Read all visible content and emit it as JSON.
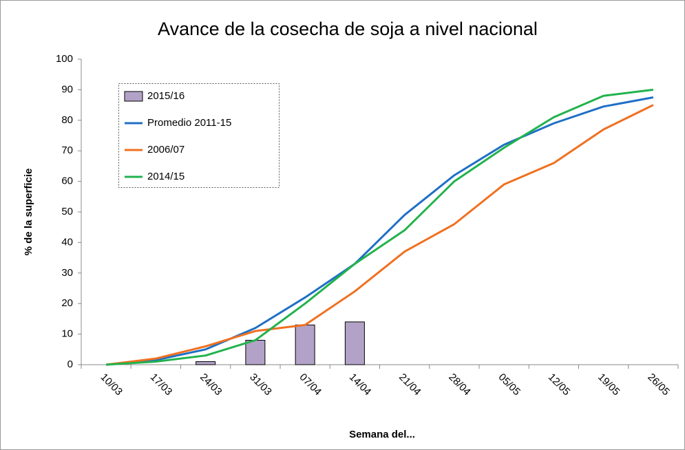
{
  "chart_data": {
    "type": "line",
    "title": "Avance de la cosecha de soja a nivel nacional",
    "x_label": "Semana del...",
    "y_label": "% de la superficie",
    "categories": [
      "10/03",
      "17/03",
      "24/03",
      "31/03",
      "07/04",
      "14/04",
      "21/04",
      "28/04",
      "05/05",
      "12/05",
      "19/05",
      "26/05"
    ],
    "series": [
      {
        "name": "2015/16",
        "type": "bar",
        "color": "#b3a2c7",
        "values": [
          null,
          null,
          1,
          8,
          13,
          14,
          null,
          null,
          null,
          null,
          null,
          null
        ]
      },
      {
        "name": "Promedio 2011-15",
        "type": "line",
        "color": "#1f6fc5",
        "values": [
          0,
          1.5,
          5,
          12,
          22,
          33,
          49,
          62,
          72,
          79,
          84.5,
          87.5
        ]
      },
      {
        "name": "2006/07",
        "type": "line",
        "color": "#f07020",
        "values": [
          0,
          2,
          6,
          11,
          13,
          24,
          37,
          46,
          59,
          66,
          77,
          85
        ]
      },
      {
        "name": "2014/15",
        "type": "line",
        "color": "#22b24c",
        "values": [
          0,
          1,
          3,
          8,
          20,
          33,
          44,
          60,
          71,
          81,
          88,
          90
        ]
      }
    ],
    "ylim": [
      0,
      100
    ],
    "yticks": [
      0,
      10,
      20,
      30,
      40,
      50,
      60,
      70,
      80,
      90,
      100
    ],
    "legend": "upper left"
  }
}
